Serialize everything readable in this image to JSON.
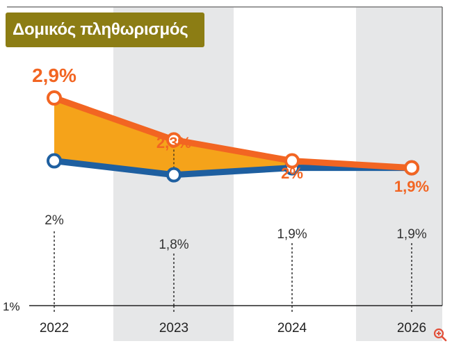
{
  "chart_data": {
    "type": "line",
    "title": "Δομικός πληθωρισμός",
    "categories": [
      "2022",
      "2023",
      "2024",
      "2026"
    ],
    "series": [
      {
        "name": "upper",
        "color": "#f26522",
        "values": [
          2.9,
          2.3,
          2.0,
          1.9
        ],
        "labels": [
          "2,9%",
          "2,3%",
          "2%",
          "1,9%"
        ]
      },
      {
        "name": "lower",
        "color": "#1e5fa0",
        "values": [
          2.0,
          1.8,
          1.9,
          1.9
        ],
        "labels": [
          "2%",
          "1,8%",
          "1,9%",
          "1,9%"
        ]
      }
    ],
    "fill_between_color": "#f5a31a",
    "y_axis_label": "1%",
    "ylim": [
      1.0,
      3.0
    ]
  },
  "icons": {
    "zoom": "zoom-in-icon"
  }
}
